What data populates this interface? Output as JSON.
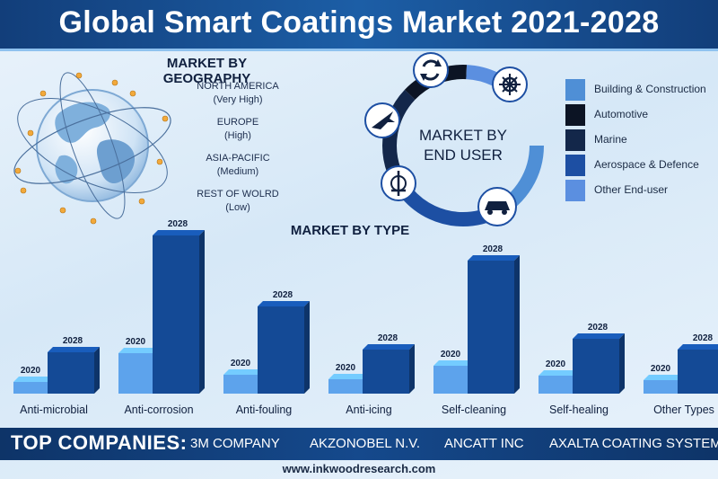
{
  "title": "Global Smart Coatings Market 2021-2028",
  "geography": {
    "heading": "MARKET BY GEOGRAPHY",
    "regions": [
      {
        "name": "NORTH AMERICA",
        "level": "(Very High)"
      },
      {
        "name": "EUROPE",
        "level": "(High)"
      },
      {
        "name": "ASIA-PACIFIC",
        "level": "(Medium)"
      },
      {
        "name": "REST OF WOLRD",
        "level": "(Low)"
      }
    ]
  },
  "end_user": {
    "heading_line1": "MARKET BY",
    "heading_line2": "END USER",
    "icons": [
      "recycle-icon",
      "ship-wheel-icon",
      "fighter-jet-icon",
      "marine-emblem-icon",
      "car-icon"
    ],
    "legend": [
      {
        "label": "Building & Construction",
        "color": "#4f8fd6"
      },
      {
        "label": "Automotive",
        "color": "#0c1424"
      },
      {
        "label": "Marine",
        "color": "#13274a"
      },
      {
        "label": "Aerospace & Defence",
        "color": "#1d4fa3"
      },
      {
        "label": "Other End-user",
        "color": "#5b8fe0"
      }
    ]
  },
  "chart_data": {
    "type": "bar",
    "title": "MARKET BY TYPE",
    "categories": [
      "Anti-microbial",
      "Anti-corrosion",
      "Anti-fouling",
      "Anti-icing",
      "Self-cleaning",
      "Self-healing",
      "Other Types"
    ],
    "series": [
      {
        "name": "2020",
        "values": [
          13,
          45,
          21,
          16,
          31,
          20,
          15
        ],
        "color": "#5da3ec"
      },
      {
        "name": "2028",
        "values": [
          46,
          176,
          97,
          49,
          148,
          61,
          49
        ],
        "color": "#144a96"
      }
    ]
  },
  "companies": {
    "heading": "TOP COMPANIES:",
    "names": [
      "3M COMPANY",
      "AKZONOBEL N.V.",
      "ANCATT INC",
      "AXALTA COATING SYSTEM"
    ]
  },
  "website": "www.inkwoodresearch.com"
}
